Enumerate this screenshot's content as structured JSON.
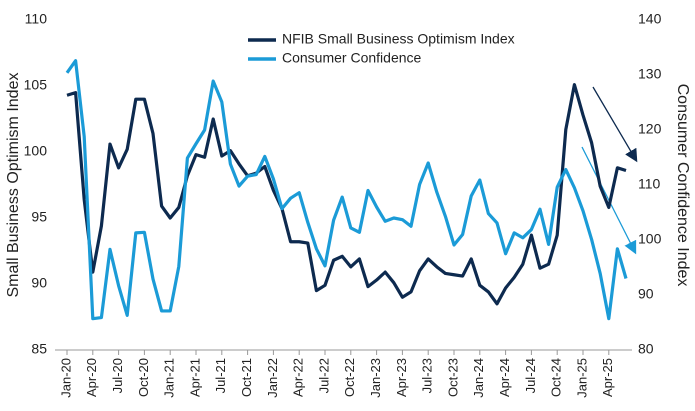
{
  "chart_data": {
    "type": "line",
    "categories": [
      "Jan-20",
      null,
      null,
      "Apr-20",
      null,
      null,
      "Jul-20",
      null,
      null,
      "Oct-20",
      null,
      null,
      "Jan-21",
      null,
      null,
      "Apr-21",
      null,
      null,
      "Jul-21",
      null,
      null,
      "Oct-21",
      null,
      null,
      "Jan-22",
      null,
      null,
      "Apr-22",
      null,
      null,
      "Jul-22",
      null,
      null,
      "Oct-22",
      null,
      null,
      "Jan-23",
      null,
      null,
      "Apr-23",
      null,
      null,
      "Jul-23",
      null,
      null,
      "Oct-23",
      null,
      null,
      "Jan-24",
      null,
      null,
      "Apr-24",
      null,
      null,
      "Jul-24",
      null,
      null,
      "Oct-24",
      null,
      null,
      "Jan-25",
      null,
      null,
      "Apr-25",
      null,
      null
    ],
    "series": [
      {
        "name": "NFIB Small Business Optimism Index",
        "color": "#0d2a4f",
        "axis": "y",
        "values": [
          104.3,
          104.5,
          96.4,
          90.9,
          94.4,
          100.6,
          98.8,
          100.2,
          104.0,
          104.0,
          101.4,
          95.9,
          95.0,
          95.8,
          98.2,
          99.8,
          99.6,
          102.5,
          99.7,
          100.1,
          99.1,
          98.2,
          98.4,
          98.9,
          97.1,
          95.7,
          93.2,
          93.2,
          93.1,
          89.5,
          89.9,
          91.8,
          92.1,
          91.3,
          91.9,
          89.8,
          90.3,
          90.9,
          90.1,
          89.0,
          89.4,
          91.0,
          91.9,
          91.3,
          90.8,
          90.7,
          90.6,
          91.9,
          89.9,
          89.4,
          88.5,
          89.7,
          90.5,
          91.5,
          93.7,
          91.2,
          91.5,
          93.7,
          101.7,
          105.1,
          102.8,
          100.7,
          97.4,
          95.8,
          98.8,
          98.6
        ]
      },
      {
        "name": "Consumer Confidence",
        "color": "#1b9bd7",
        "axis": "y2",
        "values": [
          130.4,
          132.6,
          118.8,
          85.7,
          85.9,
          98.3,
          91.7,
          86.3,
          101.3,
          101.4,
          92.9,
          87.1,
          87.1,
          95.2,
          114.9,
          117.5,
          120.0,
          128.9,
          125.1,
          113.8,
          109.8,
          111.6,
          111.9,
          115.2,
          111.1,
          105.7,
          107.6,
          108.6,
          103.2,
          98.4,
          95.3,
          103.6,
          107.8,
          102.2,
          101.4,
          109.0,
          106.0,
          103.4,
          104.0,
          103.7,
          102.5,
          110.1,
          114.0,
          108.7,
          104.3,
          99.1,
          101.0,
          108.0,
          110.9,
          104.8,
          103.1,
          97.5,
          101.3,
          100.4,
          101.9,
          105.6,
          99.2,
          109.6,
          112.8,
          109.5,
          105.3,
          100.1,
          93.9,
          85.7,
          98.4,
          93.0
        ]
      }
    ],
    "ylabel": "Small Business Optimism Index",
    "y2label": "Consumer Confidence Index",
    "ylim": [
      85,
      110
    ],
    "yticks": [
      85,
      90,
      95,
      100,
      105,
      110
    ],
    "y2lim": [
      80,
      140
    ],
    "y2ticks": [
      80,
      90,
      100,
      110,
      120,
      130,
      140
    ],
    "legend": "top"
  }
}
